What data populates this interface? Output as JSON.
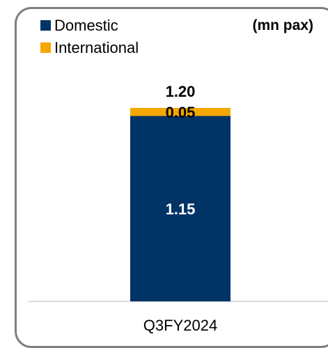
{
  "chart_data": {
    "type": "bar",
    "stacked": true,
    "unit": "(mn pax)",
    "categories": [
      "Q3FY2024"
    ],
    "series": [
      {
        "name": "Domestic",
        "values": [
          1.15
        ],
        "color": "#003366",
        "label_color": "#ffffff",
        "labels": [
          "1.15"
        ]
      },
      {
        "name": "International",
        "values": [
          0.05
        ],
        "color": "#f5a800",
        "label_color": "#000000",
        "labels": [
          "0.05"
        ]
      }
    ],
    "totals": [
      "1.20"
    ],
    "total_values": [
      1.2
    ],
    "legend_position": "top-left",
    "grid": false
  }
}
